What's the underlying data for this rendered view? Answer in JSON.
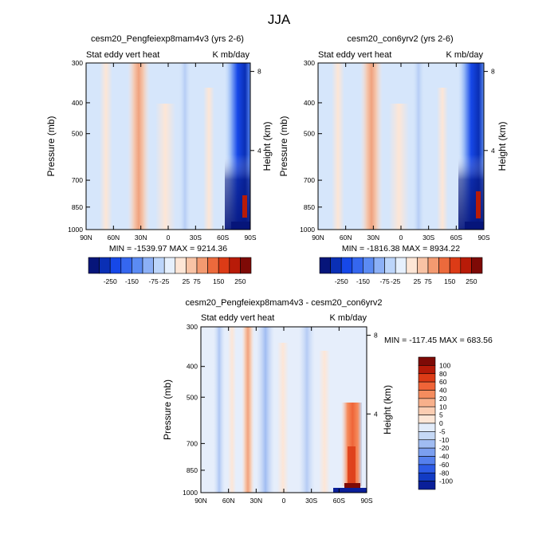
{
  "figure": {
    "title": "JJA"
  },
  "chart_data": [
    {
      "type": "heatmap",
      "title": "cesm20_Pengfeiexp8mam4v3 (yrs 2-6)",
      "left_label": "Stat eddy vert heat",
      "right_label": "K mb/day",
      "xlabel": "",
      "ylabel": "Pressure (mb)",
      "y2label": "Height (km)",
      "x_ticks": [
        "90N",
        "60N",
        "30N",
        "0",
        "30S",
        "60S",
        "90S"
      ],
      "y_ticks": [
        "300",
        "400",
        "500",
        "700",
        "850",
        "1000"
      ],
      "y2_ticks": [
        "8",
        "4"
      ],
      "ylim": [
        1000,
        300
      ],
      "xlim": [
        "90N",
        "90S"
      ],
      "y_scale": "log",
      "min_max_text": "MIN = -1539.97   MAX = 9214.36",
      "colorbar": {
        "orientation": "horizontal",
        "labels": [
          "-250",
          "-150",
          "-75",
          "-25",
          "25",
          "75",
          "150",
          "250"
        ]
      }
    },
    {
      "type": "heatmap",
      "title": "cesm20_con6yrv2 (yrs 2-6)",
      "left_label": "Stat eddy vert heat",
      "right_label": "K mb/day",
      "xlabel": "",
      "ylabel": "Pressure (mb)",
      "y2label": "Height (km)",
      "x_ticks": [
        "90N",
        "60N",
        "30N",
        "0",
        "30S",
        "60S",
        "90S"
      ],
      "y_ticks": [
        "300",
        "400",
        "500",
        "700",
        "850",
        "1000"
      ],
      "y2_ticks": [
        "8",
        "4"
      ],
      "ylim": [
        1000,
        300
      ],
      "xlim": [
        "90N",
        "90S"
      ],
      "y_scale": "log",
      "min_max_text": "MIN = -1816.38   MAX = 8934.22",
      "colorbar": {
        "orientation": "horizontal",
        "labels": [
          "-250",
          "-150",
          "-75",
          "-25",
          "25",
          "75",
          "150",
          "250"
        ]
      }
    },
    {
      "type": "heatmap",
      "title": "cesm20_Pengfeiexp8mam4v3 - cesm20_con6yrv2",
      "left_label": "Stat eddy vert heat",
      "right_label": "K mb/day",
      "xlabel": "",
      "ylabel": "Pressure (mb)",
      "y2label": "Height (km)",
      "x_ticks": [
        "90N",
        "60N",
        "30N",
        "0",
        "30S",
        "60S",
        "90S"
      ],
      "y_ticks": [
        "300",
        "400",
        "500",
        "700",
        "850",
        "1000"
      ],
      "y2_ticks": [
        "8",
        "4"
      ],
      "ylim": [
        1000,
        300
      ],
      "xlim": [
        "90N",
        "90S"
      ],
      "y_scale": "log",
      "min_max_text": "MIN = -117.45   MAX = 683.56",
      "colorbar": {
        "orientation": "vertical",
        "labels": [
          "100",
          "80",
          "60",
          "40",
          "20",
          "10",
          "5",
          "0",
          "-5",
          "-10",
          "-20",
          "-40",
          "-60",
          "-80",
          "-100"
        ]
      }
    }
  ],
  "palettes": {
    "horizontal": [
      "#06157a",
      "#0a2fb5",
      "#1648e8",
      "#3567ef",
      "#5b8bf3",
      "#8cb0f6",
      "#bcd5fa",
      "#e6f0fd",
      "#fde6d6",
      "#f8c3a5",
      "#f39a70",
      "#ec6a3c",
      "#dc3b16",
      "#b81b08",
      "#7e0a06"
    ],
    "vertical": [
      "#7e0a06",
      "#b51a08",
      "#dc3b16",
      "#ef6438",
      "#f58c5e",
      "#f8b08b",
      "#fbcdb2",
      "#fde6d6",
      "#e2ecfa",
      "#c5d8f5",
      "#a0bcf2",
      "#7b9ff0",
      "#5580ee",
      "#2d5be6",
      "#123bc4",
      "#0a1f99"
    ]
  }
}
